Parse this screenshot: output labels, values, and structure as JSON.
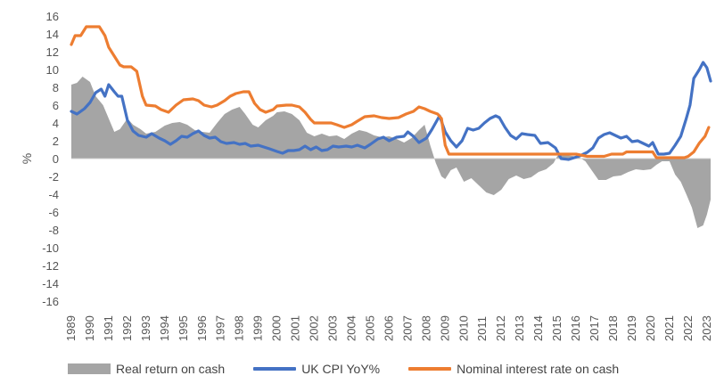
{
  "chart_data": {
    "type": "line",
    "title": "",
    "xlabel": "",
    "ylabel": "%",
    "ylim": [
      -16,
      16
    ],
    "xlim": [
      1989,
      2023.2
    ],
    "yticks": [
      "16",
      "14",
      "12",
      "10",
      "8",
      "6",
      "4",
      "2",
      "0",
      "-2",
      "-4",
      "-6",
      "-8",
      "-10",
      "-12",
      "-14",
      "-16"
    ],
    "xticks": [
      "1989",
      "1990",
      "1991",
      "1992",
      "1993",
      "1994",
      "1995",
      "1996",
      "1997",
      "1998",
      "1999",
      "2000",
      "2001",
      "2002",
      "2003",
      "2004",
      "2005",
      "2006",
      "2007",
      "2008",
      "2009",
      "2010",
      "2011",
      "2012",
      "2013",
      "2014",
      "2015",
      "2016",
      "2017",
      "2018",
      "2019",
      "2020",
      "2021",
      "2022",
      "2023"
    ],
    "legend_position": "bottom",
    "series": [
      {
        "name": "Real return on cash",
        "style": "area",
        "color": "#a5a5a5",
        "points": [
          [
            1989.0,
            8.3
          ],
          [
            1989.3,
            8.5
          ],
          [
            1989.6,
            9.2
          ],
          [
            1990.0,
            8.6
          ],
          [
            1990.3,
            7.0
          ],
          [
            1990.7,
            6.0
          ],
          [
            1991.0,
            4.5
          ],
          [
            1991.3,
            3.0
          ],
          [
            1991.6,
            3.3
          ],
          [
            1992.0,
            4.5
          ],
          [
            1992.3,
            3.8
          ],
          [
            1992.7,
            3.3
          ],
          [
            1993.0,
            2.8
          ],
          [
            1993.5,
            3.0
          ],
          [
            1994.0,
            3.7
          ],
          [
            1994.4,
            4.0
          ],
          [
            1994.8,
            4.1
          ],
          [
            1995.2,
            3.8
          ],
          [
            1995.6,
            3.2
          ],
          [
            1996.0,
            3.0
          ],
          [
            1996.4,
            2.9
          ],
          [
            1996.8,
            4.0
          ],
          [
            1997.2,
            5.0
          ],
          [
            1997.6,
            5.5
          ],
          [
            1998.0,
            5.8
          ],
          [
            1998.3,
            5.0
          ],
          [
            1998.7,
            3.8
          ],
          [
            1999.0,
            3.5
          ],
          [
            1999.4,
            4.3
          ],
          [
            1999.8,
            4.8
          ],
          [
            2000.0,
            5.2
          ],
          [
            2000.4,
            5.3
          ],
          [
            2000.8,
            5.0
          ],
          [
            2001.2,
            4.3
          ],
          [
            2001.6,
            2.9
          ],
          [
            2002.0,
            2.5
          ],
          [
            2002.4,
            2.8
          ],
          [
            2002.8,
            2.5
          ],
          [
            2003.2,
            2.6
          ],
          [
            2003.6,
            2.2
          ],
          [
            2004.0,
            2.8
          ],
          [
            2004.4,
            3.2
          ],
          [
            2004.8,
            3.0
          ],
          [
            2005.2,
            2.6
          ],
          [
            2005.6,
            2.4
          ],
          [
            2006.0,
            2.5
          ],
          [
            2006.4,
            2.2
          ],
          [
            2006.8,
            1.8
          ],
          [
            2007.2,
            2.3
          ],
          [
            2007.6,
            3.2
          ],
          [
            2007.9,
            3.8
          ],
          [
            2008.2,
            1.5
          ],
          [
            2008.5,
            -0.5
          ],
          [
            2008.8,
            -2.0
          ],
          [
            2009.0,
            -2.3
          ],
          [
            2009.3,
            -1.3
          ],
          [
            2009.6,
            -1.0
          ],
          [
            2010.0,
            -2.6
          ],
          [
            2010.4,
            -2.2
          ],
          [
            2010.8,
            -3.0
          ],
          [
            2011.2,
            -3.8
          ],
          [
            2011.6,
            -4.1
          ],
          [
            2012.0,
            -3.5
          ],
          [
            2012.4,
            -2.3
          ],
          [
            2012.8,
            -1.9
          ],
          [
            2013.2,
            -2.3
          ],
          [
            2013.6,
            -2.1
          ],
          [
            2014.0,
            -1.5
          ],
          [
            2014.4,
            -1.2
          ],
          [
            2014.8,
            -0.5
          ],
          [
            2015.0,
            0.3
          ],
          [
            2015.4,
            0.4
          ],
          [
            2015.8,
            0.3
          ],
          [
            2016.2,
            0.1
          ],
          [
            2016.5,
            -0.3
          ],
          [
            2016.8,
            -1.2
          ],
          [
            2017.2,
            -2.4
          ],
          [
            2017.6,
            -2.4
          ],
          [
            2018.0,
            -2.0
          ],
          [
            2018.4,
            -1.9
          ],
          [
            2018.8,
            -1.5
          ],
          [
            2019.2,
            -1.2
          ],
          [
            2019.6,
            -1.3
          ],
          [
            2020.0,
            -1.2
          ],
          [
            2020.3,
            -0.7
          ],
          [
            2020.6,
            -0.3
          ],
          [
            2021.0,
            -0.3
          ],
          [
            2021.3,
            -1.8
          ],
          [
            2021.6,
            -2.6
          ],
          [
            2021.9,
            -4.0
          ],
          [
            2022.2,
            -5.5
          ],
          [
            2022.5,
            -7.8
          ],
          [
            2022.8,
            -7.5
          ],
          [
            2023.0,
            -6.3
          ],
          [
            2023.2,
            -4.6
          ]
        ]
      },
      {
        "name": "UK CPI YoY%",
        "style": "line",
        "color": "#4472c4",
        "points": [
          [
            1989.0,
            5.3
          ],
          [
            1989.3,
            5.0
          ],
          [
            1989.7,
            5.6
          ],
          [
            1990.0,
            6.3
          ],
          [
            1990.3,
            7.4
          ],
          [
            1990.6,
            7.8
          ],
          [
            1990.8,
            7.0
          ],
          [
            1991.0,
            8.3
          ],
          [
            1991.3,
            7.5
          ],
          [
            1991.5,
            7.0
          ],
          [
            1991.7,
            7.0
          ],
          [
            1992.0,
            4.3
          ],
          [
            1992.3,
            3.1
          ],
          [
            1992.6,
            2.6
          ],
          [
            1993.0,
            2.4
          ],
          [
            1993.3,
            2.8
          ],
          [
            1993.7,
            2.3
          ],
          [
            1994.0,
            2.0
          ],
          [
            1994.3,
            1.6
          ],
          [
            1994.6,
            2.0
          ],
          [
            1994.9,
            2.5
          ],
          [
            1995.2,
            2.4
          ],
          [
            1995.5,
            2.8
          ],
          [
            1995.8,
            3.1
          ],
          [
            1996.1,
            2.6
          ],
          [
            1996.4,
            2.3
          ],
          [
            1996.7,
            2.4
          ],
          [
            1997.0,
            1.9
          ],
          [
            1997.3,
            1.7
          ],
          [
            1997.7,
            1.8
          ],
          [
            1998.0,
            1.6
          ],
          [
            1998.3,
            1.7
          ],
          [
            1998.6,
            1.4
          ],
          [
            1999.0,
            1.5
          ],
          [
            1999.3,
            1.3
          ],
          [
            1999.6,
            1.1
          ],
          [
            2000.0,
            0.8
          ],
          [
            2000.3,
            0.6
          ],
          [
            2000.6,
            0.9
          ],
          [
            2000.9,
            0.9
          ],
          [
            2001.2,
            1.0
          ],
          [
            2001.5,
            1.4
          ],
          [
            2001.8,
            1.0
          ],
          [
            2002.1,
            1.3
          ],
          [
            2002.4,
            0.9
          ],
          [
            2002.7,
            1.0
          ],
          [
            2003.0,
            1.4
          ],
          [
            2003.3,
            1.3
          ],
          [
            2003.7,
            1.4
          ],
          [
            2004.0,
            1.3
          ],
          [
            2004.3,
            1.5
          ],
          [
            2004.7,
            1.2
          ],
          [
            2005.0,
            1.6
          ],
          [
            2005.4,
            2.2
          ],
          [
            2005.7,
            2.4
          ],
          [
            2006.0,
            2.0
          ],
          [
            2006.4,
            2.4
          ],
          [
            2006.8,
            2.5
          ],
          [
            2007.0,
            3.0
          ],
          [
            2007.3,
            2.5
          ],
          [
            2007.6,
            1.8
          ],
          [
            2008.0,
            2.3
          ],
          [
            2008.3,
            3.3
          ],
          [
            2008.7,
            4.8
          ],
          [
            2009.0,
            3.0
          ],
          [
            2009.3,
            2.0
          ],
          [
            2009.6,
            1.3
          ],
          [
            2009.9,
            2.0
          ],
          [
            2010.2,
            3.4
          ],
          [
            2010.5,
            3.2
          ],
          [
            2010.8,
            3.4
          ],
          [
            2011.1,
            4.0
          ],
          [
            2011.4,
            4.5
          ],
          [
            2011.7,
            4.8
          ],
          [
            2011.9,
            4.6
          ],
          [
            2012.2,
            3.5
          ],
          [
            2012.5,
            2.6
          ],
          [
            2012.8,
            2.2
          ],
          [
            2013.1,
            2.8
          ],
          [
            2013.4,
            2.7
          ],
          [
            2013.8,
            2.6
          ],
          [
            2014.1,
            1.7
          ],
          [
            2014.5,
            1.8
          ],
          [
            2014.9,
            1.2
          ],
          [
            2015.2,
            0.0
          ],
          [
            2015.6,
            -0.1
          ],
          [
            2015.9,
            0.1
          ],
          [
            2016.2,
            0.3
          ],
          [
            2016.6,
            0.7
          ],
          [
            2016.9,
            1.2
          ],
          [
            2017.2,
            2.3
          ],
          [
            2017.5,
            2.7
          ],
          [
            2017.8,
            2.9
          ],
          [
            2018.1,
            2.6
          ],
          [
            2018.4,
            2.3
          ],
          [
            2018.7,
            2.5
          ],
          [
            2019.0,
            1.9
          ],
          [
            2019.3,
            2.0
          ],
          [
            2019.6,
            1.7
          ],
          [
            2019.9,
            1.4
          ],
          [
            2020.1,
            1.8
          ],
          [
            2020.4,
            0.5
          ],
          [
            2020.7,
            0.5
          ],
          [
            2021.0,
            0.6
          ],
          [
            2021.3,
            1.5
          ],
          [
            2021.6,
            2.5
          ],
          [
            2021.9,
            4.5
          ],
          [
            2022.1,
            6.0
          ],
          [
            2022.3,
            9.0
          ],
          [
            2022.6,
            10.0
          ],
          [
            2022.8,
            10.8
          ],
          [
            2023.0,
            10.2
          ],
          [
            2023.2,
            8.7
          ]
        ]
      },
      {
        "name": "Nominal interest rate on cash",
        "style": "line",
        "color": "#ed7d31",
        "points": [
          [
            1989.0,
            12.8
          ],
          [
            1989.2,
            13.8
          ],
          [
            1989.5,
            13.8
          ],
          [
            1989.8,
            14.8
          ],
          [
            1990.0,
            14.8
          ],
          [
            1990.5,
            14.8
          ],
          [
            1990.8,
            13.8
          ],
          [
            1991.0,
            12.5
          ],
          [
            1991.3,
            11.5
          ],
          [
            1991.6,
            10.5
          ],
          [
            1991.8,
            10.3
          ],
          [
            1992.2,
            10.3
          ],
          [
            1992.5,
            9.8
          ],
          [
            1992.8,
            7.0
          ],
          [
            1993.0,
            6.0
          ],
          [
            1993.5,
            5.9
          ],
          [
            1993.8,
            5.5
          ],
          [
            1994.2,
            5.2
          ],
          [
            1994.6,
            6.0
          ],
          [
            1995.0,
            6.6
          ],
          [
            1995.5,
            6.7
          ],
          [
            1995.8,
            6.5
          ],
          [
            1996.1,
            6.0
          ],
          [
            1996.5,
            5.8
          ],
          [
            1996.8,
            6.0
          ],
          [
            1997.2,
            6.5
          ],
          [
            1997.5,
            7.0
          ],
          [
            1997.8,
            7.3
          ],
          [
            1998.2,
            7.5
          ],
          [
            1998.5,
            7.5
          ],
          [
            1998.8,
            6.2
          ],
          [
            1999.1,
            5.5
          ],
          [
            1999.4,
            5.2
          ],
          [
            1999.8,
            5.5
          ],
          [
            2000.0,
            5.9
          ],
          [
            2000.5,
            6.0
          ],
          [
            2000.8,
            6.0
          ],
          [
            2001.2,
            5.8
          ],
          [
            2001.5,
            5.2
          ],
          [
            2001.8,
            4.4
          ],
          [
            2002.0,
            4.0
          ],
          [
            2002.5,
            4.0
          ],
          [
            2002.9,
            4.0
          ],
          [
            2003.2,
            3.8
          ],
          [
            2003.6,
            3.5
          ],
          [
            2004.0,
            3.8
          ],
          [
            2004.3,
            4.2
          ],
          [
            2004.7,
            4.7
          ],
          [
            2005.2,
            4.8
          ],
          [
            2005.6,
            4.6
          ],
          [
            2006.0,
            4.5
          ],
          [
            2006.5,
            4.6
          ],
          [
            2006.9,
            5.0
          ],
          [
            2007.3,
            5.3
          ],
          [
            2007.6,
            5.8
          ],
          [
            2007.9,
            5.6
          ],
          [
            2008.2,
            5.3
          ],
          [
            2008.6,
            5.0
          ],
          [
            2008.8,
            4.5
          ],
          [
            2009.0,
            1.5
          ],
          [
            2009.2,
            0.5
          ],
          [
            2012.0,
            0.5
          ],
          [
            2014.0,
            0.5
          ],
          [
            2016.0,
            0.5
          ],
          [
            2016.6,
            0.25
          ],
          [
            2017.5,
            0.25
          ],
          [
            2017.9,
            0.5
          ],
          [
            2018.5,
            0.5
          ],
          [
            2018.7,
            0.75
          ],
          [
            2019.5,
            0.75
          ],
          [
            2020.1,
            0.75
          ],
          [
            2020.3,
            0.1
          ],
          [
            2021.0,
            0.1
          ],
          [
            2021.8,
            0.1
          ],
          [
            2022.0,
            0.25
          ],
          [
            2022.3,
            0.75
          ],
          [
            2022.6,
            1.75
          ],
          [
            2022.9,
            2.5
          ],
          [
            2023.1,
            3.5
          ]
        ]
      }
    ]
  },
  "legend": {
    "real_return": "Real return on cash",
    "cpi": "UK CPI YoY%",
    "nominal": "Nominal interest rate on cash"
  }
}
